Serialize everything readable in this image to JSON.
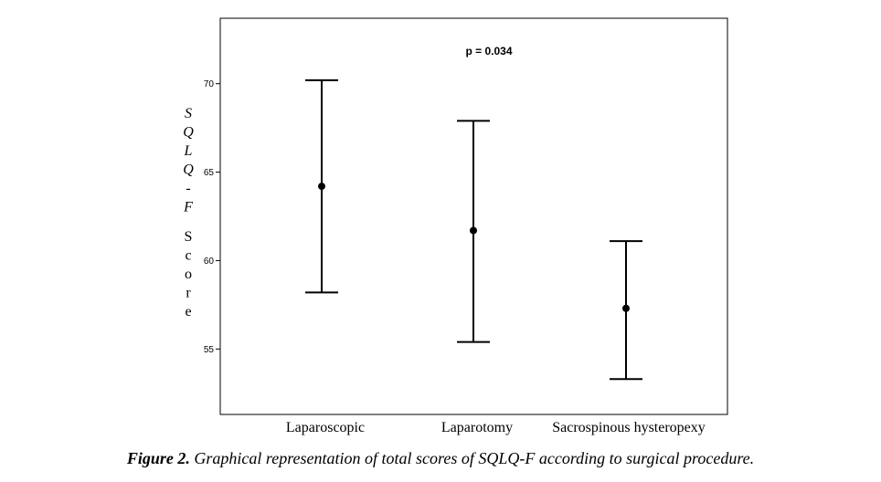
{
  "chart_data": {
    "type": "errorbar",
    "categories": [
      "Laparoscopic",
      "Laparotomy",
      "Sacrospinous hysteropexy"
    ],
    "mean": [
      64.2,
      61.7,
      57.3
    ],
    "lower": [
      58.2,
      55.4,
      53.3
    ],
    "upper": [
      70.2,
      67.9,
      61.1
    ],
    "ylim": [
      51.3,
      73.7
    ],
    "yticks": [
      55,
      60,
      65,
      70
    ],
    "ytick_labels": [
      "55",
      "60",
      "65",
      "70"
    ],
    "ylabel_italic": "SQLQ-F",
    "ylabel_rest": "Score",
    "annotation": "p = 0.034",
    "grid": false
  },
  "caption": {
    "label": "Figure 2.",
    "text": "Graphical representation of total scores of SQLQ-F according to surgical procedure."
  }
}
